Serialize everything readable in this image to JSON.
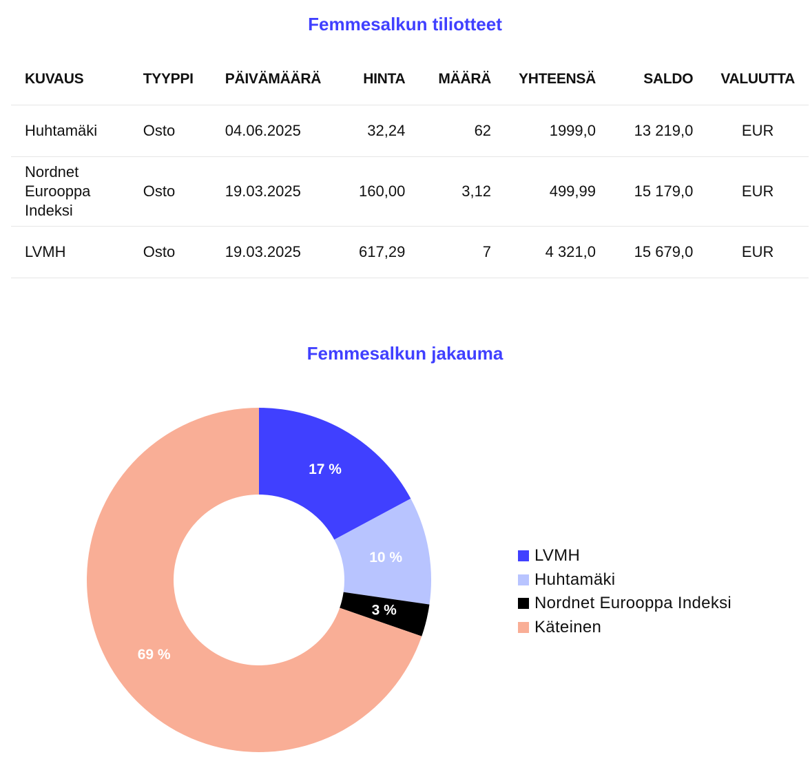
{
  "table_title": "Femmesalkun tiliotteet",
  "table": {
    "headers": [
      "KUVAUS",
      "TYYPPI",
      "PÄIVÄMÄÄRÄ",
      "HINTA",
      "MÄÄRÄ",
      "YHTEENSÄ",
      "SALDO",
      "VALUUTTA"
    ],
    "rows": [
      [
        "Huhtamäki",
        "Osto",
        "04.06.2025",
        "32,24",
        "62",
        "1999,0",
        "13 219,0",
        "EUR"
      ],
      [
        "Nordnet Eurooppa Indeksi",
        "Osto",
        "19.03.2025",
        "160,00",
        "3,12",
        "499,99",
        "15 179,0",
        "EUR"
      ],
      [
        "LVMH",
        "Osto",
        "19.03.2025",
        "617,29",
        "7",
        "4 321,0",
        "15 679,0",
        "EUR"
      ]
    ]
  },
  "chart_title": "Femmesalkun jakauma",
  "chart_data": {
    "type": "pie",
    "donut": true,
    "title": "Femmesalkun jakauma",
    "series": [
      {
        "name": "LVMH",
        "value": 17,
        "label": "17 %",
        "color": "#4040ff"
      },
      {
        "name": "Huhtamäki",
        "value": 10,
        "label": "10 %",
        "color": "#b8c4ff"
      },
      {
        "name": "Nordnet Eurooppa Indeksi",
        "value": 3,
        "label": "3 %",
        "color": "#000000"
      },
      {
        "name": "Käteinen",
        "value": 69,
        "label": "69 %",
        "color": "#f9ae96"
      }
    ],
    "legend_position": "right"
  }
}
